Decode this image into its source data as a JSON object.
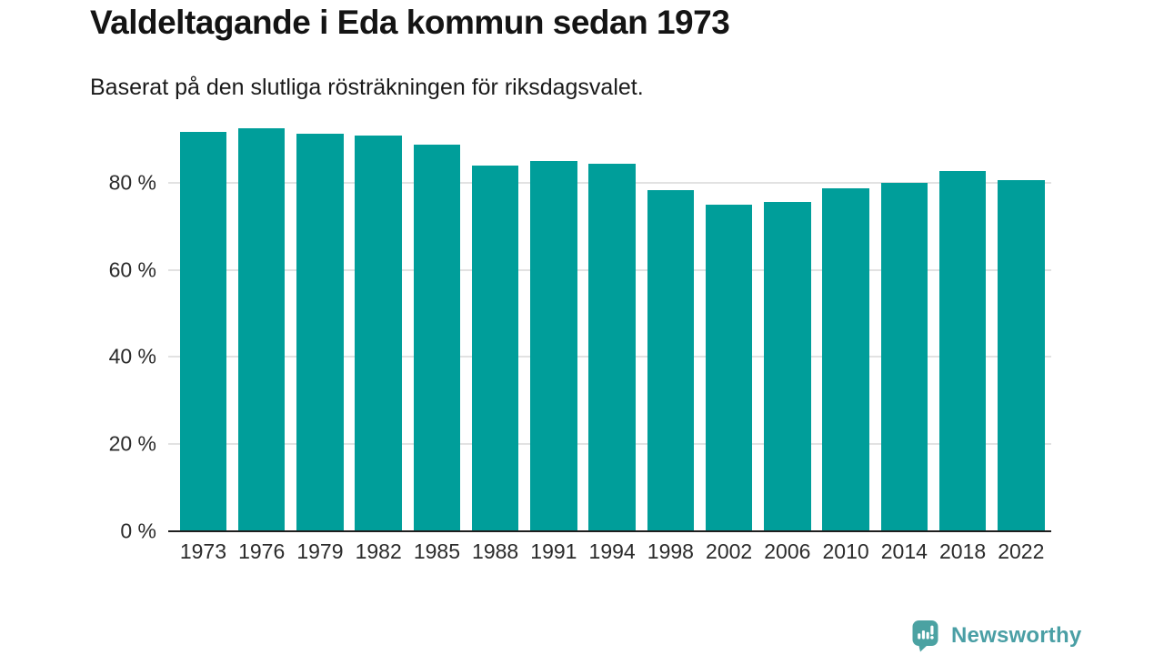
{
  "title": "Valdeltagande i Eda kommun sedan 1973",
  "subtitle": "Baserat på den slutliga rösträkningen för riksdagsvalet.",
  "footer": {
    "brand": "Newsworthy"
  },
  "colors": {
    "bar": "#009e9a",
    "grid": "#e2e2e2",
    "axis": "#1f1f1f",
    "tick_text": "#2b2b2b",
    "logo_bubble": "#4ba2a2",
    "logo_text": "#4a9fa5"
  },
  "chart_data": {
    "type": "bar",
    "title": "Valdeltagande i Eda kommun sedan 1973",
    "subtitle": "Baserat på den slutliga rösträkningen för riksdagsvalet.",
    "categories": [
      "1973",
      "1976",
      "1979",
      "1982",
      "1985",
      "1988",
      "1991",
      "1994",
      "1998",
      "2002",
      "2006",
      "2010",
      "2014",
      "2018",
      "2022"
    ],
    "values": [
      91.6,
      92.5,
      91.2,
      90.8,
      88.7,
      83.9,
      84.9,
      84.4,
      78.4,
      75.0,
      75.5,
      78.7,
      79.9,
      82.6,
      80.5
    ],
    "xlabel": "",
    "ylabel": "",
    "y_ticks": [
      0,
      20,
      40,
      60,
      80
    ],
    "y_tick_format": "{v} %",
    "ylim": [
      0,
      92.5
    ],
    "grid": "horizontal",
    "legend": "none"
  }
}
